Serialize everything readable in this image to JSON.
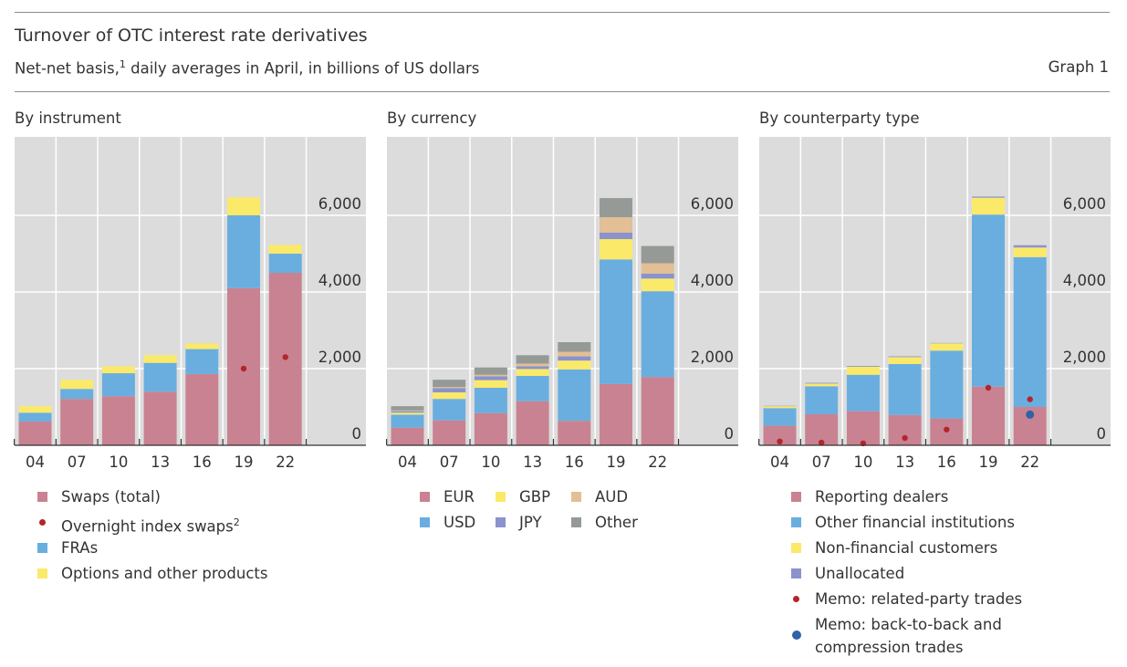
{
  "header": {
    "title": "Turnover of OTC interest rate derivatives",
    "subtitle": "Net-net basis,",
    "subtitle_sup": "1",
    "subtitle_rest": " daily averages in April, in billions of US dollars",
    "graph_label": "Graph 1"
  },
  "colors": {
    "pink": "#c98291",
    "blue": "#6aaee0",
    "yellow": "#fbe96a",
    "tan": "#e2bf95",
    "purple": "#8a93cc",
    "grey": "#959a96",
    "red_dot": "#b3252b",
    "navy_dot": "#2e63a8",
    "plot_bg": "#dcdcdc"
  },
  "legends": {
    "instrument": [
      {
        "label": "Swaps (total)",
        "sup": "",
        "marker": "square",
        "color": "pink"
      },
      {
        "label": "Overnight index swaps",
        "sup": "2",
        "marker": "dot",
        "color": "red_dot"
      },
      {
        "label": "FRAs",
        "sup": "",
        "marker": "square",
        "color": "blue"
      },
      {
        "label": "Options and other products",
        "sup": "",
        "marker": "square",
        "color": "yellow"
      }
    ],
    "currency": [
      {
        "label": "EUR",
        "color": "pink"
      },
      {
        "label": "USD",
        "color": "blue"
      },
      {
        "label": "GBP",
        "color": "yellow"
      },
      {
        "label": "JPY",
        "color": "purple"
      },
      {
        "label": "AUD",
        "color": "tan"
      },
      {
        "label": "Other",
        "color": "grey"
      }
    ],
    "counterparty": [
      {
        "label": "Reporting dealers",
        "marker": "square",
        "color": "pink"
      },
      {
        "label": "Other financial institutions",
        "marker": "square",
        "color": "blue"
      },
      {
        "label": "Non-financial customers",
        "marker": "square",
        "color": "yellow"
      },
      {
        "label": "Unallocated",
        "marker": "square",
        "color": "purple"
      },
      {
        "label": "Memo: related-party trades",
        "marker": "dot",
        "color": "red_dot"
      },
      {
        "label": "Memo: back-to-back and",
        "label2": "compression trades",
        "marker": "bigdot",
        "color": "navy_dot"
      }
    ]
  },
  "chart_data": [
    {
      "title": "By instrument",
      "type": "bar",
      "stacked": true,
      "categories": [
        "04",
        "07",
        "10",
        "13",
        "16",
        "19",
        "22"
      ],
      "ylim": [
        0,
        8000
      ],
      "yticks": [
        0,
        2000,
        4000,
        6000
      ],
      "ytick_labels": [
        "0",
        "2,000",
        "4,000",
        "6,000"
      ],
      "grid": true,
      "series": [
        {
          "name": "Swaps (total)",
          "color": "pink",
          "values": [
            620,
            1210,
            1280,
            1400,
            1860,
            4100,
            4500
          ]
        },
        {
          "name": "FRAs",
          "color": "blue",
          "values": [
            230,
            260,
            600,
            750,
            650,
            1900,
            500
          ]
        },
        {
          "name": "Options and other products",
          "color": "yellow",
          "values": [
            170,
            240,
            180,
            200,
            150,
            470,
            230
          ]
        }
      ],
      "markers": [
        {
          "name": "Overnight index swaps",
          "color": "red_dot",
          "values": [
            null,
            null,
            null,
            null,
            null,
            2000,
            2300
          ]
        }
      ]
    },
    {
      "title": "By currency",
      "type": "bar",
      "stacked": true,
      "categories": [
        "04",
        "07",
        "10",
        "13",
        "16",
        "19",
        "22"
      ],
      "ylim": [
        0,
        8000
      ],
      "yticks": [
        0,
        2000,
        4000,
        6000
      ],
      "ytick_labels": [
        "0",
        "2,000",
        "4,000",
        "6,000"
      ],
      "grid": true,
      "series": [
        {
          "name": "EUR",
          "color": "pink",
          "values": [
            460,
            650,
            840,
            1150,
            640,
            1600,
            1780
          ]
        },
        {
          "name": "USD",
          "color": "blue",
          "values": [
            340,
            560,
            660,
            660,
            1340,
            3250,
            2240
          ]
        },
        {
          "name": "GBP",
          "color": "yellow",
          "values": [
            50,
            170,
            200,
            180,
            230,
            530,
            330
          ]
        },
        {
          "name": "JPY",
          "color": "purple",
          "values": [
            40,
            110,
            100,
            70,
            110,
            170,
            130
          ]
        },
        {
          "name": "AUD",
          "color": "tan",
          "values": [
            20,
            30,
            40,
            70,
            120,
            400,
            270
          ]
        },
        {
          "name": "Other",
          "color": "grey",
          "values": [
            110,
            190,
            190,
            220,
            250,
            500,
            450
          ]
        }
      ]
    },
    {
      "title": "By counterparty type",
      "type": "bar",
      "stacked": true,
      "categories": [
        "04",
        "07",
        "10",
        "13",
        "16",
        "19",
        "22"
      ],
      "ylim": [
        0,
        8000
      ],
      "yticks": [
        0,
        2000,
        4000,
        6000
      ],
      "ytick_labels": [
        "0",
        "2,000",
        "4,000",
        "6,000"
      ],
      "grid": true,
      "series": [
        {
          "name": "Reporting dealers",
          "color": "pink",
          "values": [
            510,
            810,
            890,
            790,
            700,
            1530,
            1000
          ]
        },
        {
          "name": "Other financial institutions",
          "color": "blue",
          "values": [
            460,
            730,
            950,
            1330,
            1770,
            4490,
            3910
          ]
        },
        {
          "name": "Non-financial customers",
          "color": "yellow",
          "values": [
            50,
            70,
            210,
            180,
            190,
            440,
            250
          ]
        },
        {
          "name": "Unallocated",
          "color": "purple",
          "values": [
            10,
            20,
            20,
            20,
            10,
            30,
            60
          ]
        }
      ],
      "markers": [
        {
          "name": "Memo: related-party trades",
          "color": "red_dot",
          "values": [
            100,
            70,
            50,
            190,
            410,
            1500,
            1200
          ]
        },
        {
          "name": "Memo: back-to-back and compression trades",
          "color": "navy_dot",
          "values": [
            null,
            null,
            null,
            null,
            null,
            null,
            800
          ]
        }
      ]
    }
  ]
}
